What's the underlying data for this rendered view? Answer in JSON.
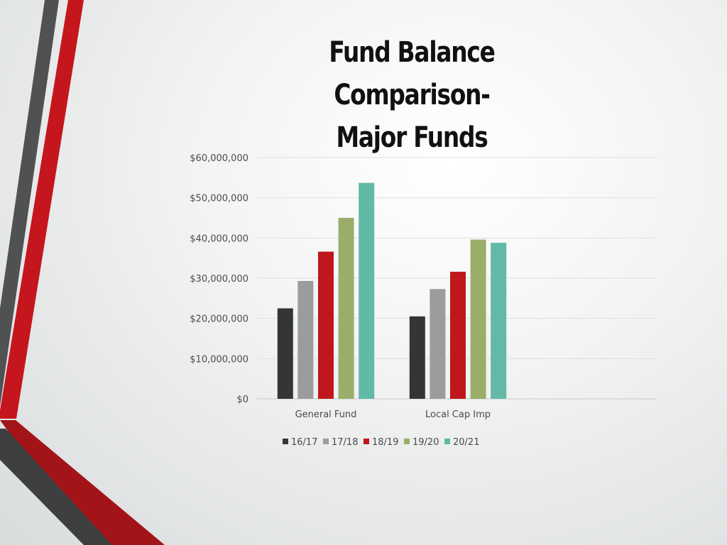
{
  "slide": {
    "title_line1": "Fund Balance Comparison-",
    "title_line2": "Major Funds"
  },
  "colors": {
    "accent_red": "#c0171c",
    "accent_dark": "#4d4d4d"
  },
  "chart_data": {
    "type": "bar",
    "title": "",
    "xlabel": "",
    "ylabel": "",
    "ylim": [
      0,
      60000000
    ],
    "yticks": [
      0,
      10000000,
      20000000,
      30000000,
      40000000,
      50000000,
      60000000
    ],
    "ytick_labels": [
      "$0",
      "$10,000,000",
      "$20,000,000",
      "$30,000,000",
      "$40,000,000",
      "$50,000,000",
      "$60,000,000"
    ],
    "categories": [
      "General Fund",
      "Local Cap Imp"
    ],
    "grid": true,
    "legend_position": "bottom",
    "series": [
      {
        "name": "16/17",
        "color": "#333635",
        "values": [
          22500000,
          20500000
        ]
      },
      {
        "name": "17/18",
        "color": "#9a9c9e",
        "values": [
          29300000,
          27300000
        ]
      },
      {
        "name": "18/19",
        "color": "#c0171c",
        "values": [
          36600000,
          31600000
        ]
      },
      {
        "name": "19/20",
        "color": "#9aae6a",
        "values": [
          45000000,
          39600000
        ]
      },
      {
        "name": "20/21",
        "color": "#61b9a6",
        "values": [
          53700000,
          38800000
        ]
      }
    ]
  }
}
